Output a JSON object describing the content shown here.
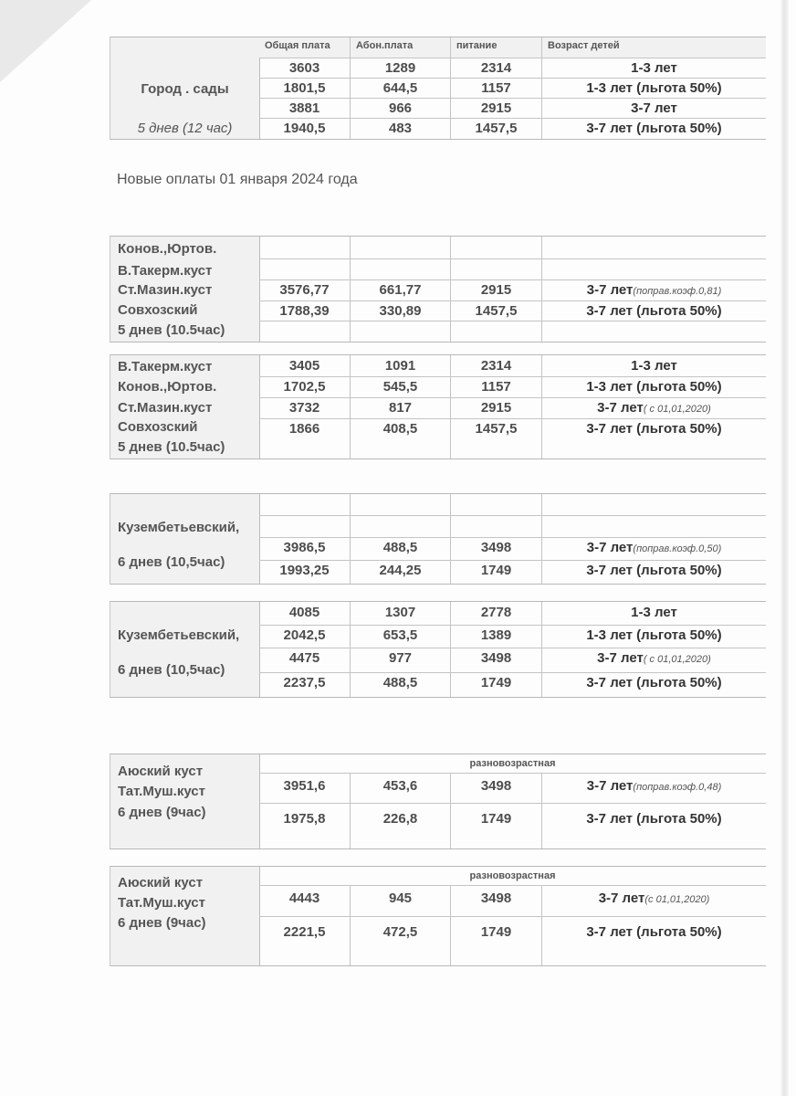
{
  "headers": [
    "Общая плата",
    "Абон.плата",
    "питание",
    "Возраст детей"
  ],
  "heading": "Новые оплаты 01 января 2024 года",
  "tables": [
    {
      "labels": [
        "Город . сады",
        "5 днев (12 час)"
      ],
      "rows": [
        [
          "3603",
          "1289",
          "2314",
          "1-3 лет",
          ""
        ],
        [
          "1801,5",
          "644,5",
          "1157",
          "1-3 лет (льгота 50%)",
          ""
        ],
        [
          "3881",
          "966",
          "2915",
          "3-7 лет",
          ""
        ],
        [
          "1940,5",
          "483",
          "1457,5",
          "3-7 лет (льгота 50%)",
          ""
        ]
      ]
    },
    {
      "labels": [
        "Конов.,Юртов.",
        "В.Такерм.куст",
        "Ст.Мазин.куст",
        "Совхозский",
        "5 днев (10.5час)"
      ],
      "rows": [
        [
          "",
          "",
          "",
          "",
          ""
        ],
        [
          "",
          "",
          "",
          "",
          ""
        ],
        [
          "3576,77",
          "661,77",
          "2915",
          "3-7 лет",
          "(поправ.коэф.0,81)"
        ],
        [
          "1788,39",
          "330,89",
          "1457,5",
          "3-7 лет (льгота 50%)",
          ""
        ],
        [
          "",
          "",
          "",
          "",
          ""
        ]
      ]
    },
    {
      "labels": [
        "В.Такерм.куст",
        "Конов.,Юртов.",
        "Ст.Мазин.куст",
        "Совхозский",
        "5 днев (10.5час)"
      ],
      "rows": [
        [
          "3405",
          "1091",
          "2314",
          "1-3 лет",
          ""
        ],
        [
          "1702,5",
          "545,5",
          "1157",
          "1-3 лет (льгота 50%)",
          ""
        ],
        [
          "3732",
          "817",
          "2915",
          "3-7 лет",
          "( с 01,01,2020)"
        ],
        [
          "1866",
          "408,5",
          "1457,5",
          "3-7 лет (льгота 50%)",
          ""
        ]
      ]
    },
    {
      "labels": [
        "Кузембетьевский,",
        "6 днев (10,5час)"
      ],
      "rows": [
        [
          "",
          "",
          "",
          "",
          ""
        ],
        [
          "",
          "",
          "",
          "",
          ""
        ],
        [
          "3986,5",
          "488,5",
          "3498",
          "3-7 лет",
          "(поправ.коэф.0,50)"
        ],
        [
          "1993,25",
          "244,25",
          "1749",
          "3-7 лет (льгота 50%)",
          ""
        ]
      ]
    },
    {
      "labels": [
        "Кузембетьевский,",
        "6 днев (10,5час)"
      ],
      "rows": [
        [
          "4085",
          "1307",
          "2778",
          "1-3 лет",
          ""
        ],
        [
          "2042,5",
          "653,5",
          "1389",
          "1-3 лет (льгота 50%)",
          ""
        ],
        [
          "4475",
          "977",
          "3498",
          "3-7 лет",
          "( с 01,01,2020)"
        ],
        [
          "2237,5",
          "488,5",
          "1749",
          "3-7 лет (льгота 50%)",
          ""
        ]
      ]
    },
    {
      "labels": [
        "Аюский куст",
        "Тат.Муш.куст",
        "6 днев (9час)"
      ],
      "span": "разновозрастная",
      "rows": [
        [
          "3951,6",
          "453,6",
          "3498",
          "3-7 лет",
          "(поправ.коэф.0,48)"
        ],
        [
          "1975,8",
          "226,8",
          "1749",
          "3-7 лет (льгота 50%)",
          ""
        ]
      ]
    },
    {
      "labels": [
        "Аюский куст",
        "Тат.Муш.куст",
        "6 днев (9час)"
      ],
      "span": "разновозрастная",
      "rows": [
        [
          "4443",
          "945",
          "3498",
          "3-7 лет",
          "(с 01,01,2020)"
        ],
        [
          "2221,5",
          "472,5",
          "1749",
          "3-7 лет (льгота 50%)",
          ""
        ]
      ]
    }
  ]
}
